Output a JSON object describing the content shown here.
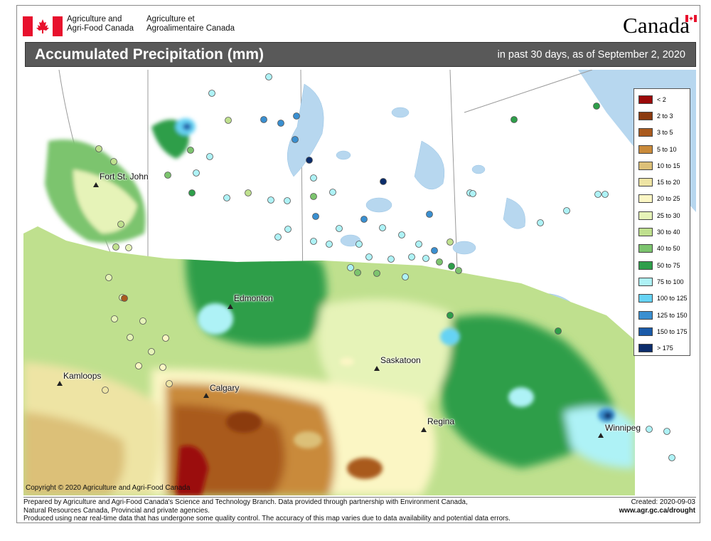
{
  "header": {
    "agency_en_line1": "Agriculture and",
    "agency_en_line2": "Agri-Food Canada",
    "agency_fr_line1": "Agriculture et",
    "agency_fr_line2": "Agroalimentaire Canada",
    "wordmark": "Canada",
    "title": "Accumulated Precipitation (mm)",
    "subtitle": "in past 30 days, as of September 2, 2020"
  },
  "colors": {
    "title_bar": "#595959",
    "flag_red": "#e8112d",
    "water": "#b7d7ef",
    "land_outside": "#ffffff",
    "border_lines": "#9a9a9a"
  },
  "legend": [
    {
      "label": "< 2",
      "color": "#9b0a0a"
    },
    {
      "label": "2 to 3",
      "color": "#8b3a0f"
    },
    {
      "label": "3 to 5",
      "color": "#a95a1e"
    },
    {
      "label": "5 to 10",
      "color": "#c98a3a"
    },
    {
      "label": "10 to 15",
      "color": "#dcc078"
    },
    {
      "label": "15 to 20",
      "color": "#eee4a4"
    },
    {
      "label": "20 to 25",
      "color": "#fbf6c4"
    },
    {
      "label": "25 to 30",
      "color": "#e6f3b8"
    },
    {
      "label": "30 to 40",
      "color": "#bfe08e"
    },
    {
      "label": "40 to 50",
      "color": "#7cc46e"
    },
    {
      "label": "50 to 75",
      "color": "#2e9e4a"
    },
    {
      "label": "75 to 100",
      "color": "#aef2f6"
    },
    {
      "label": "100 to 125",
      "color": "#66d3f4"
    },
    {
      "label": "125 to 150",
      "color": "#3a8fd0"
    },
    {
      "label": "150 to 175",
      "color": "#1a5aa8"
    },
    {
      "label": "> 175",
      "color": "#0c2d6b"
    }
  ],
  "cities": [
    {
      "name": "Fort St. John",
      "icon": "triangle-marker-icon"
    },
    {
      "name": "Edmonton",
      "icon": "triangle-marker-icon"
    },
    {
      "name": "Kamloops",
      "icon": "triangle-marker-icon"
    },
    {
      "name": "Calgary",
      "icon": "triangle-marker-icon"
    },
    {
      "name": "Saskatoon",
      "icon": "triangle-marker-icon"
    },
    {
      "name": "Regina",
      "icon": "triangle-marker-icon"
    },
    {
      "name": "Winnipeg",
      "icon": "triangle-marker-icon"
    }
  ],
  "copyright": "Copyright © 2020 Agriculture and Agri-Food Canada",
  "footer": {
    "line1": "Prepared by Agriculture and Agri-Food Canada's Science and Technology Branch. Data provided through partnership with Environment Canada,",
    "line2": "Natural Resources Canada, Provincial and private agencies.",
    "line3": "Produced using near real-time data that has undergone some quality control. The accuracy of this map varies due to data availability and potential data errors.",
    "created": "Created: 2020-09-03",
    "url": "www.agr.gc.ca/drought"
  }
}
